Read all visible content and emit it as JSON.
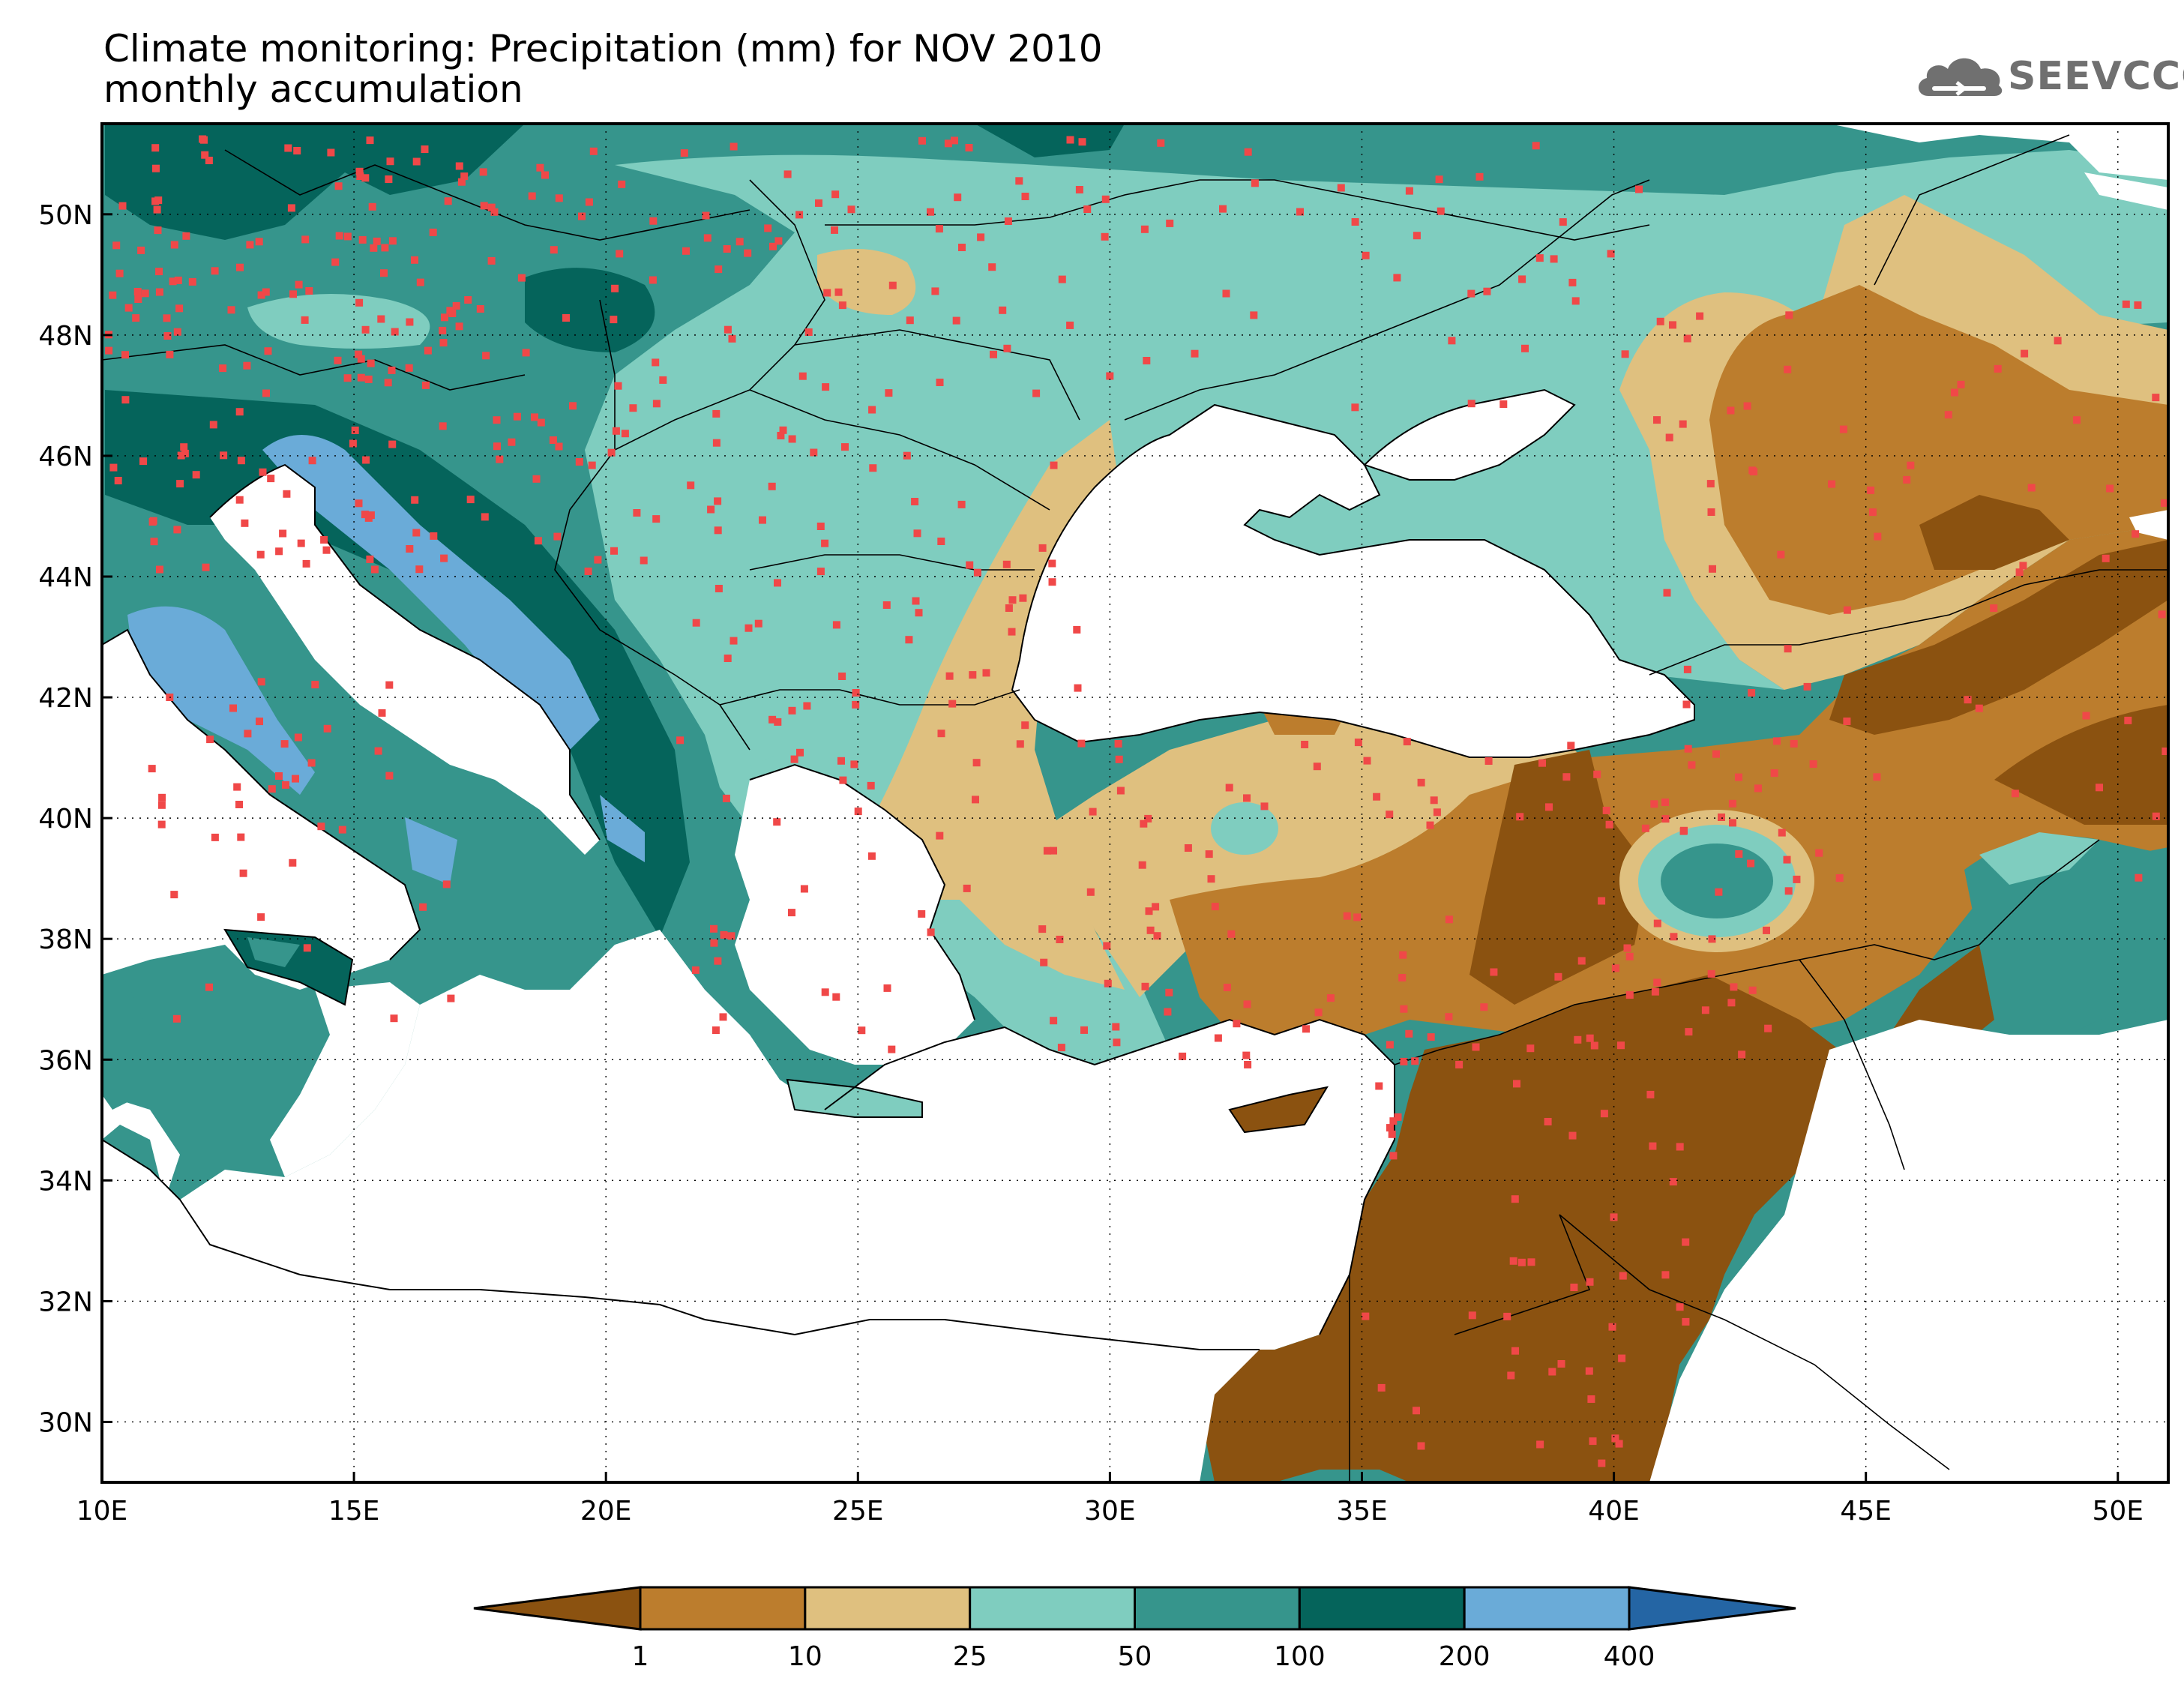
{
  "title": {
    "line1": "Climate monitoring: Precipitation (mm) for NOV 2010",
    "line2": "monthly accumulation"
  },
  "logo": {
    "text": "SEEVCCC",
    "icon": "cloud-icon"
  },
  "axes": {
    "x_ticks": [
      "10E",
      "15E",
      "20E",
      "25E",
      "30E",
      "35E",
      "40E",
      "45E",
      "50E"
    ],
    "y_ticks": [
      "30N",
      "32N",
      "34N",
      "36N",
      "38N",
      "40N",
      "42N",
      "44N",
      "46N",
      "48N",
      "50N"
    ]
  },
  "legend": {
    "thresholds": [
      "1",
      "10",
      "25",
      "50",
      "100",
      "200",
      "400"
    ],
    "colors": [
      "#8b5210",
      "#bc7d2d",
      "#dfc07f",
      "#7fcdbf",
      "#36958c",
      "#05645b",
      "#6aabd8",
      "#2465a4"
    ]
  },
  "colors": {
    "station": "#f04848",
    "land_empty": "#ffffff",
    "frame": "#000000"
  }
}
